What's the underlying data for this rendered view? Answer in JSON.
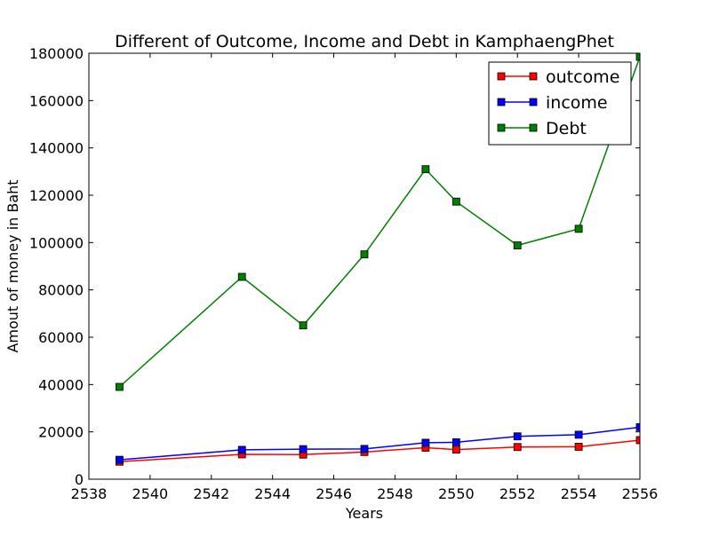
{
  "chart_data": {
    "type": "line",
    "title": "Different of Outcome, Income and Debt in KamphaengPhet",
    "xlabel": "Years",
    "ylabel": "Amout of money in Baht",
    "xlim": [
      2538,
      2556
    ],
    "ylim": [
      0,
      180000
    ],
    "xticks": [
      2538,
      2540,
      2542,
      2544,
      2546,
      2548,
      2550,
      2552,
      2554,
      2556
    ],
    "yticks": [
      0,
      20000,
      40000,
      60000,
      80000,
      100000,
      120000,
      140000,
      160000,
      180000
    ],
    "grid": false,
    "legend_position": "top-right",
    "x": [
      2539,
      2543,
      2545,
      2547,
      2549,
      2550,
      2552,
      2554,
      2556
    ],
    "series": [
      {
        "name": "outcome",
        "color": "#ff0000",
        "marker": "square",
        "values": [
          7400,
          10500,
          10400,
          11500,
          13300,
          12500,
          13600,
          13700,
          16500
        ]
      },
      {
        "name": "income",
        "color": "#0000ff",
        "marker": "square",
        "values": [
          8200,
          12400,
          12700,
          12800,
          15400,
          15600,
          18100,
          18800,
          22000
        ]
      },
      {
        "name": "Debt",
        "color": "#008000",
        "marker": "square",
        "values": [
          39000,
          85500,
          65000,
          95000,
          131000,
          117300,
          98800,
          105800,
          178500
        ]
      }
    ]
  }
}
